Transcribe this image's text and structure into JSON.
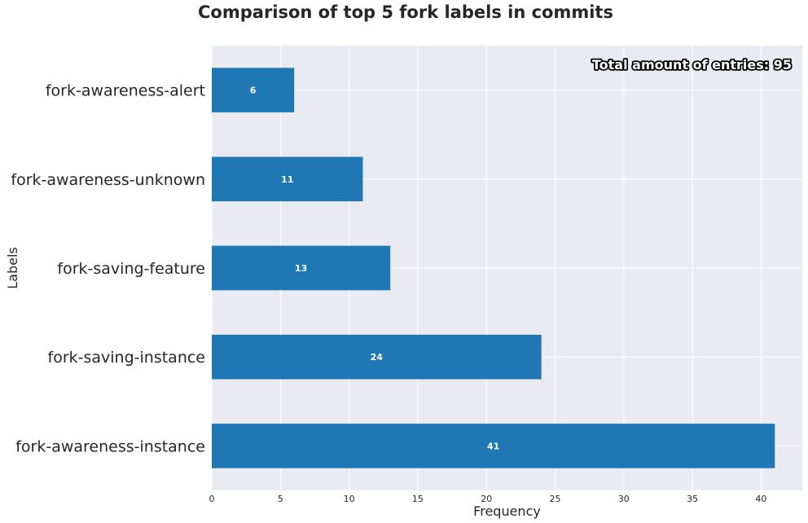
{
  "chart_data": {
    "type": "bar",
    "orientation": "horizontal",
    "title": "Comparison of top 5 fork labels in commits",
    "xlabel": "Frequency",
    "ylabel": "Labels",
    "categories": [
      "fork-awareness-alert",
      "fork-awareness-unknown",
      "fork-saving-feature",
      "fork-saving-instance",
      "fork-awareness-instance"
    ],
    "values": [
      6,
      11,
      13,
      24,
      41
    ],
    "xlim": [
      0,
      43
    ],
    "xticks": [
      0,
      5,
      10,
      15,
      20,
      25,
      30,
      35,
      40
    ],
    "grid": true,
    "annotation": "Total amount of entries: 95",
    "bar_color": "#1f77b4",
    "background_color": "#eaeaf2",
    "grid_color": "#ffffff"
  }
}
